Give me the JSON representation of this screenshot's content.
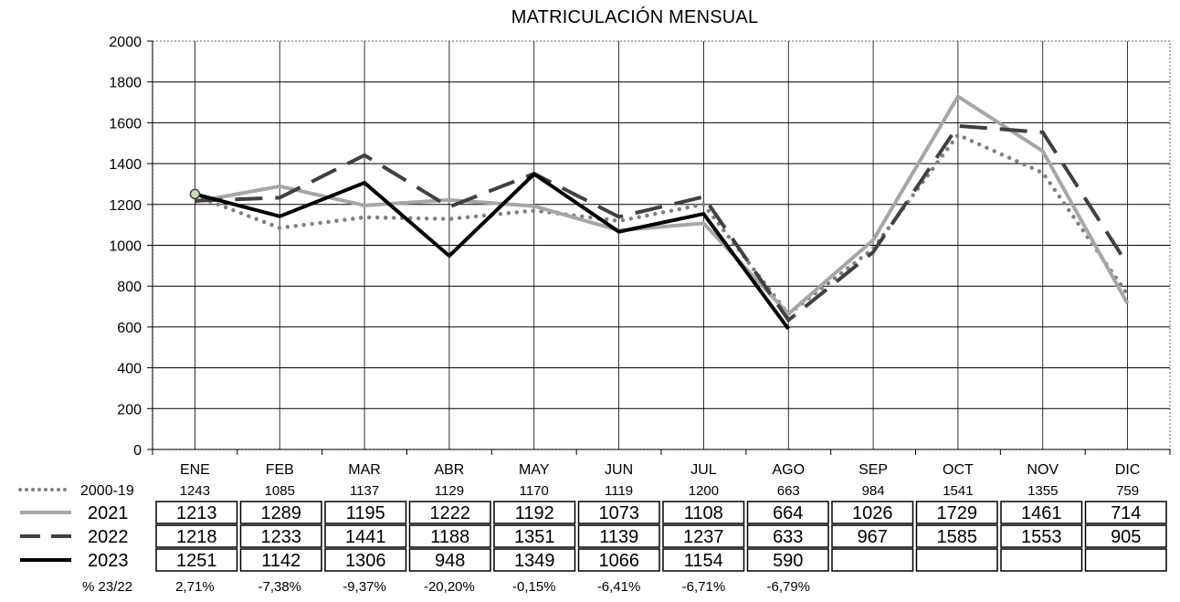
{
  "chart_data": {
    "type": "line",
    "title": "MATRICULACIÓN MENSUAL",
    "categories": [
      "ENE",
      "FEB",
      "MAR",
      "ABR",
      "MAY",
      "JUN",
      "JUL",
      "AGO",
      "SEP",
      "OCT",
      "NOV",
      "DIC"
    ],
    "ylim": [
      0,
      2000
    ],
    "yticks": [
      0,
      200,
      400,
      600,
      800,
      1000,
      1200,
      1400,
      1600,
      1800,
      2000
    ],
    "grid": "horizontal and vertical",
    "series": [
      {
        "name": "2000-19",
        "style": "dotted",
        "color": "#808080",
        "values": [
          1243,
          1085,
          1137,
          1129,
          1170,
          1119,
          1200,
          663,
          984,
          1541,
          1355,
          759
        ]
      },
      {
        "name": "2021",
        "style": "solid",
        "color": "#a6a6a6",
        "values": [
          1213,
          1289,
          1195,
          1222,
          1192,
          1073,
          1108,
          664,
          1026,
          1729,
          1461,
          714
        ]
      },
      {
        "name": "2022",
        "style": "dashed",
        "color": "#404040",
        "values": [
          1218,
          1233,
          1441,
          1188,
          1351,
          1139,
          1237,
          633,
          967,
          1585,
          1553,
          905
        ]
      },
      {
        "name": "2023",
        "style": "solid",
        "color": "#000000",
        "values": [
          1251,
          1142,
          1306,
          948,
          1349,
          1066,
          1154,
          590,
          null,
          null,
          null,
          null
        ]
      }
    ],
    "table": {
      "row_2000_19": [
        "1243",
        "1085",
        "1137",
        "1129",
        "1170",
        "1119",
        "1200",
        "663",
        "984",
        "1541",
        "1355",
        "759"
      ],
      "row_2021": [
        "1213",
        "1289",
        "1195",
        "1222",
        "1192",
        "1073",
        "1108",
        "664",
        "1026",
        "1729",
        "1461",
        "714"
      ],
      "row_2022": [
        "1218",
        "1233",
        "1441",
        "1188",
        "1351",
        "1139",
        "1237",
        "633",
        "967",
        "1585",
        "1553",
        "905"
      ],
      "row_2023": [
        "1251",
        "1142",
        "1306",
        "948",
        "1349",
        "1066",
        "1154",
        "590",
        "",
        "",
        "",
        ""
      ],
      "pct_label": "% 23/22",
      "pct_values": [
        "2,71%",
        "-7,38%",
        "-9,37%",
        "-20,20%",
        "-0,15%",
        "-6,41%",
        "-6,71%",
        "-6,79%",
        "",
        "",
        "",
        ""
      ]
    },
    "marker": {
      "series": "2023",
      "category": "ENE",
      "color": "#c6e0b4"
    }
  }
}
